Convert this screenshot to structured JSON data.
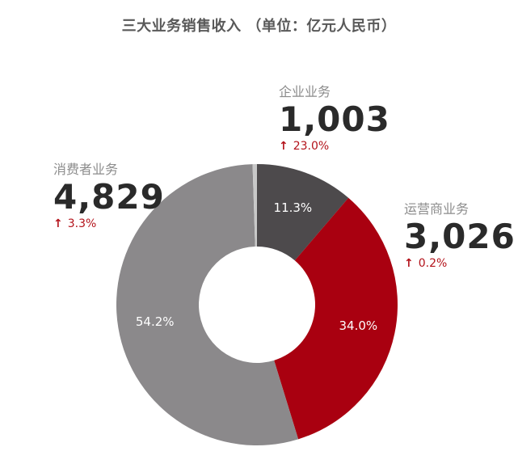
{
  "title": "三大业务销售收入 （单位：亿元人民币）",
  "chart_data": {
    "type": "pie",
    "title": "三大业务销售收入 （单位：亿元人民币）",
    "categories": [
      "企业业务",
      "运营商业务",
      "消费者业务"
    ],
    "values": [
      1003,
      3026,
      4829
    ],
    "percent_labels": [
      "11.3%",
      "34.0%",
      "54.2%"
    ],
    "growth_labels": [
      "23.0%",
      "0.2%",
      "3.3%"
    ],
    "value_labels": [
      "1,003",
      "3,026",
      "4,829"
    ],
    "other_share_percent": 0.5,
    "colors": [
      "#4d4a4c",
      "#a90010",
      "#8b898b"
    ],
    "other_color": "#c8c8c8",
    "donut": true
  },
  "callouts": [
    {
      "name": "企业业务",
      "value": "1,003",
      "growth": "23.0%",
      "arrow": "↑"
    },
    {
      "name": "运营商业务",
      "value": "3,026",
      "growth": "0.2%",
      "arrow": "↑"
    },
    {
      "name": "消费者业务",
      "value": "4,829",
      "growth": "3.3%",
      "arrow": "↑"
    }
  ]
}
